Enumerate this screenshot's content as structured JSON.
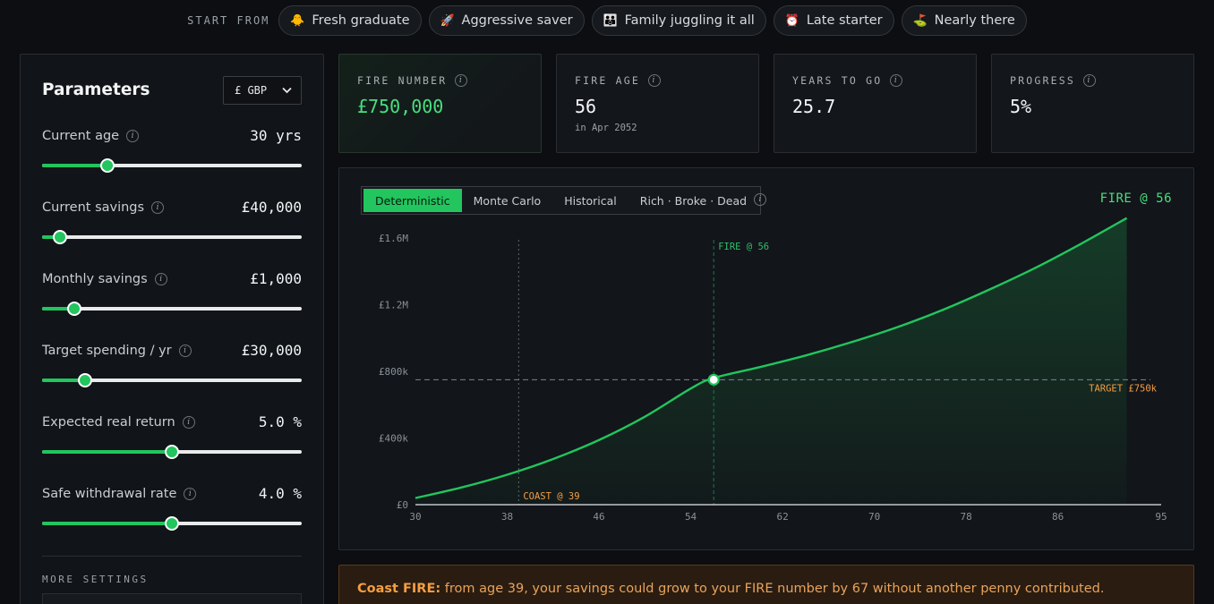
{
  "presets": {
    "start_label": "START FROM",
    "items": [
      {
        "label": "Fresh graduate",
        "icon": "🐥"
      },
      {
        "label": "Aggressive saver",
        "icon": "🚀"
      },
      {
        "label": "Family juggling it all",
        "icon": "👪"
      },
      {
        "label": "Late starter",
        "icon": "⏰"
      },
      {
        "label": "Nearly there",
        "icon": "⛳"
      }
    ]
  },
  "parameters": {
    "title": "Parameters",
    "currency": "£ GBP",
    "items": [
      {
        "label": "Current age",
        "value": "30 yrs",
        "fraction": 0.25
      },
      {
        "label": "Current savings",
        "value": "£40,000",
        "fraction": 0.07
      },
      {
        "label": "Monthly savings",
        "value": "£1,000",
        "fraction": 0.125
      },
      {
        "label": "Target spending / yr",
        "value": "£30,000",
        "fraction": 0.165
      },
      {
        "label": "Expected real return",
        "value": "5.0 %",
        "fraction": 0.5
      },
      {
        "label": "Safe withdrawal rate",
        "value": "4.0 %",
        "fraction": 0.5
      }
    ],
    "more_settings": "MORE SETTINGS"
  },
  "stats": {
    "fire_number": {
      "label": "FIRE NUMBER",
      "value": "£750,000"
    },
    "fire_age": {
      "label": "FIRE AGE",
      "value": "56",
      "sub": "in Apr 2052"
    },
    "years_to_go": {
      "label": "YEARS TO GO",
      "value": "25.7"
    },
    "progress": {
      "label": "PROGRESS",
      "value": "5%"
    }
  },
  "chart_panel": {
    "tabs": [
      "Deterministic",
      "Monte Carlo",
      "Historical",
      "Rich · Broke · Dead"
    ],
    "active_tab": 0,
    "fire_tag": "FIRE @ 56"
  },
  "chart_data": {
    "type": "area",
    "x": [
      30,
      34,
      38,
      42,
      46,
      50,
      54,
      56,
      60,
      64,
      68,
      72,
      76,
      80,
      84,
      88,
      92
    ],
    "y": [
      40000,
      103000,
      180000,
      274000,
      388000,
      528000,
      697000,
      760000,
      825000,
      895000,
      975000,
      1065000,
      1170000,
      1290000,
      1420000,
      1565000,
      1720000
    ],
    "xticks": [
      "30",
      "38",
      "46",
      "54",
      "62",
      "70",
      "78",
      "86",
      "95"
    ],
    "yticks": [
      "£0",
      "£400k",
      "£800k",
      "£1.2M",
      "£1.6M"
    ],
    "ytick_values": [
      0,
      400000,
      800000,
      1200000,
      1600000
    ],
    "xlim": [
      30,
      95
    ],
    "ylim": [
      0,
      1600000
    ],
    "target": {
      "value": 750000,
      "label": "TARGET £750k"
    },
    "fire_line": {
      "x": 56,
      "label": "FIRE @ 56"
    },
    "coast_line": {
      "x": 39,
      "label": "COAST @ 39"
    },
    "colors": {
      "line": "#22c55e",
      "target": "#f59e42",
      "fire_line": "#22c55e",
      "coast": "#f59e42",
      "axis": "#e6e8ea",
      "tick": "#8a9299"
    }
  },
  "banner": {
    "bold": "Coast FIRE:",
    "text": " from age 39, your savings could grow to your FIRE number by 67 without another penny contributed."
  }
}
